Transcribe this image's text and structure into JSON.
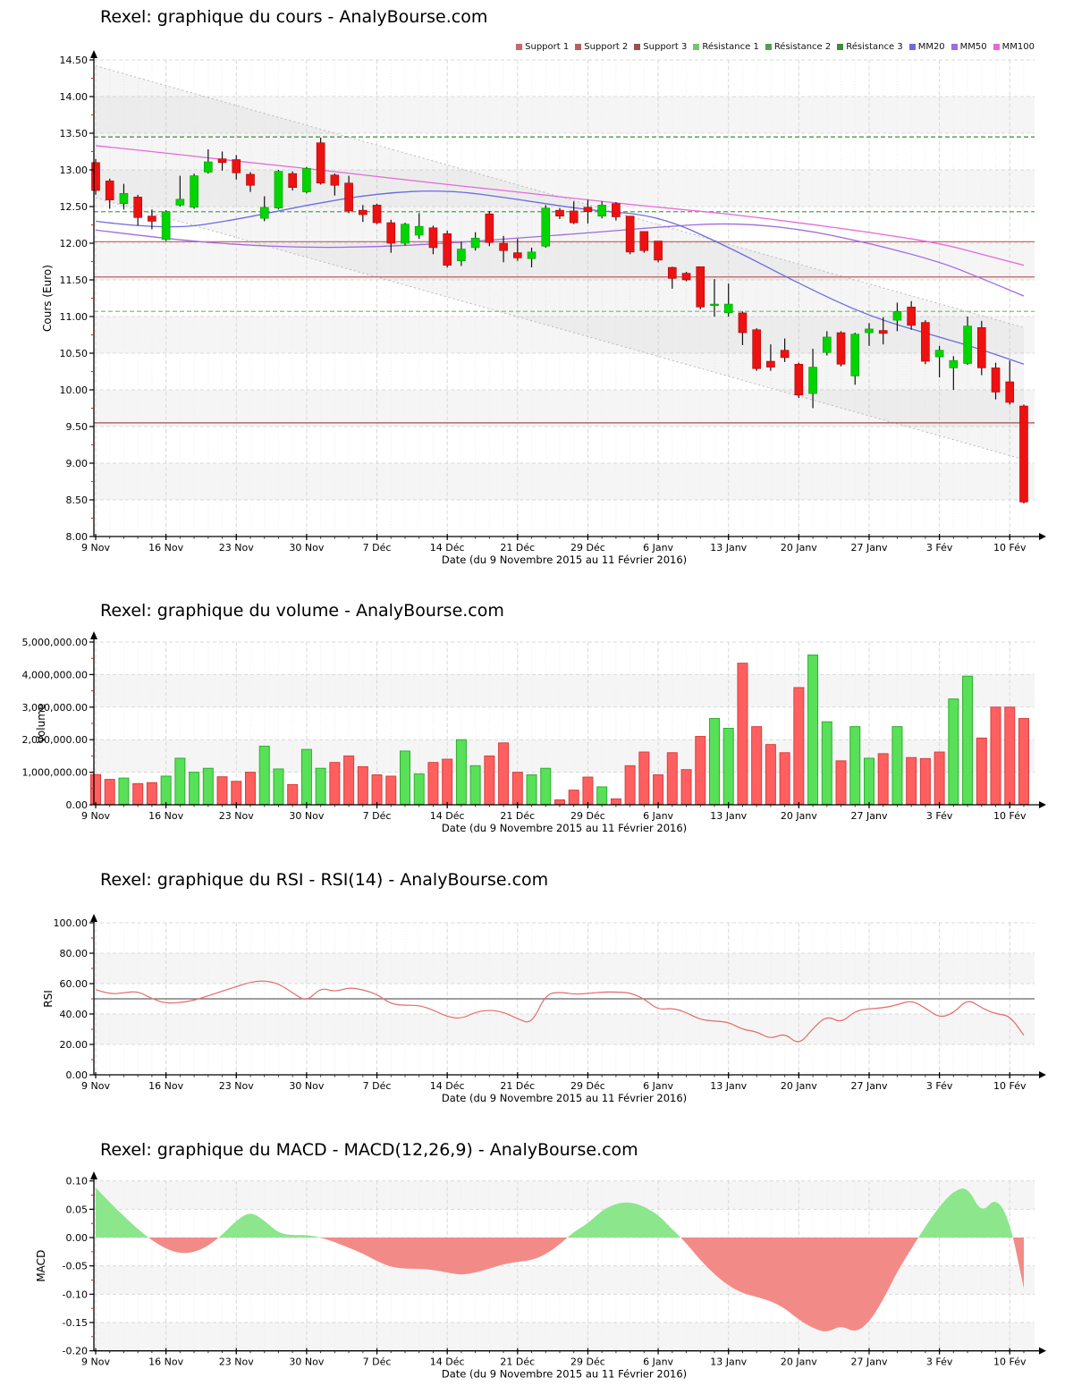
{
  "x_axis": {
    "label": "Date (du 9 Novembre 2015 au 11 Février 2016)",
    "tick_labels": [
      "9 Nov",
      "16 Nov",
      "23 Nov",
      "30 Nov",
      "7 Déc",
      "14 Déc",
      "21 Déc",
      "29 Déc",
      "6 Janv",
      "13 Janv",
      "20 Janv",
      "27 Janv",
      "3 Fév",
      "10 Fév"
    ],
    "tick_day_indices": [
      0,
      5,
      10,
      15,
      20,
      25,
      30,
      35,
      40,
      45,
      50,
      55,
      60,
      65
    ],
    "n_days": 67
  },
  "colors": {
    "candle_up": "#00d500",
    "candle_up_stroke": "#009900",
    "candle_down": "#ee1111",
    "candle_down_stroke": "#aa0000",
    "volume_up": "#58e058",
    "volume_up_stroke": "#2fae2f",
    "volume_down": "#ff5f5f",
    "volume_down_stroke": "#d84040",
    "macd_pos": "#8ce68c",
    "macd_neg": "#f28b87",
    "rsi_line": "#e46a6a",
    "rsi_mid_line": "#666666",
    "mm20": "#6b6be0",
    "mm50": "#9e6be0",
    "mm100": "#e868d8",
    "support": [
      "#c86868",
      "#b85f5f",
      "#9e4f4f"
    ],
    "resistance": [
      "#72c872",
      "#4fa44f",
      "#3d8b3d"
    ],
    "channel": "#b8b8b8",
    "grid": "#d9d9d9",
    "grid_day": "#efefef",
    "zebra": "#f5f5f5",
    "axis": "#000000",
    "minor_tick": "#dd2222"
  },
  "chart_data": [
    {
      "type": "candlestick",
      "title": "Rexel: graphique du cours - AnalyBourse.com",
      "ylabel": "Cours (Euro)",
      "xlabel": "Date (du 9 Novembre 2015 au 11 Février 2016)",
      "ylim": [
        8.0,
        14.5
      ],
      "y_tick_values": [
        14.5,
        14.0,
        13.5,
        13.0,
        12.5,
        12.0,
        11.5,
        11.0,
        10.5,
        10.0,
        9.5,
        9.0,
        8.5,
        8.0
      ],
      "y_tick_labels": [
        "14.50",
        "14.00",
        "13.50",
        "13.00",
        "12.50",
        "12.00",
        "11.50",
        "11.00",
        "10.50",
        "10.00",
        "9.50",
        "9.00",
        "8.50",
        "8.00"
      ],
      "legend": [
        {
          "label": "Support 1",
          "color": "#c86868"
        },
        {
          "label": "Support 2",
          "color": "#b85f5f"
        },
        {
          "label": "Support 3",
          "color": "#9e4f4f"
        },
        {
          "label": "Résistance 1",
          "color": "#72c872"
        },
        {
          "label": "Résistance 2",
          "color": "#4fa44f"
        },
        {
          "label": "Résistance 3",
          "color": "#3d8b3d"
        },
        {
          "label": "MM20",
          "color": "#6b6be0"
        },
        {
          "label": "MM50",
          "color": "#9e6be0"
        },
        {
          "label": "MM100",
          "color": "#e868d8"
        }
      ],
      "supports": [
        12.02,
        11.54,
        9.55
      ],
      "resistances": [
        11.07,
        12.43,
        13.45
      ],
      "regression_channel": {
        "upper_start": 14.42,
        "upper_end": 10.85,
        "lower_start": 12.62,
        "lower_end": 9.05
      },
      "mm_sample_days": [
        0,
        5,
        10,
        15,
        20,
        25,
        30,
        35,
        40,
        45,
        50,
        55,
        60,
        63,
        66
      ],
      "mm20": [
        12.3,
        12.18,
        12.32,
        12.52,
        12.68,
        12.73,
        12.6,
        12.45,
        12.38,
        11.95,
        11.45,
        11.0,
        10.72,
        10.55,
        10.35
      ],
      "mm50": [
        12.18,
        12.06,
        11.98,
        11.94,
        11.95,
        12.0,
        12.07,
        12.14,
        12.22,
        12.28,
        12.2,
        12.0,
        11.75,
        11.52,
        11.28
      ],
      "mm100": [
        13.33,
        13.23,
        13.12,
        13.02,
        12.91,
        12.8,
        12.7,
        12.59,
        12.49,
        12.4,
        12.28,
        12.15,
        12.0,
        11.85,
        11.7
      ],
      "dates": [
        "09/11",
        "10/11",
        "11/11",
        "12/11",
        "13/11",
        "16/11",
        "17/11",
        "18/11",
        "19/11",
        "20/11",
        "23/11",
        "24/11",
        "25/11",
        "26/11",
        "27/11",
        "30/11",
        "01/12",
        "02/12",
        "03/12",
        "04/12",
        "07/12",
        "08/12",
        "09/12",
        "10/12",
        "11/12",
        "14/12",
        "15/12",
        "16/12",
        "17/12",
        "18/12",
        "21/12",
        "22/12",
        "23/12",
        "24/12",
        "28/12",
        "29/12",
        "30/12",
        "31/12",
        "04/01",
        "05/01",
        "06/01",
        "07/01",
        "08/01",
        "11/01",
        "12/01",
        "13/01",
        "14/01",
        "15/01",
        "18/01",
        "19/01",
        "20/01",
        "21/01",
        "22/01",
        "25/01",
        "26/01",
        "27/01",
        "28/01",
        "29/01",
        "01/02",
        "02/02",
        "03/02",
        "04/02",
        "05/02",
        "08/02",
        "09/02",
        "10/02",
        "11/02"
      ],
      "candles_ohlc": [
        [
          13.1,
          13.15,
          12.66,
          12.72
        ],
        [
          12.85,
          12.88,
          12.47,
          12.59
        ],
        [
          12.54,
          12.81,
          12.46,
          12.68
        ],
        [
          12.63,
          12.66,
          12.24,
          12.35
        ],
        [
          12.37,
          12.46,
          12.19,
          12.3
        ],
        [
          12.05,
          12.45,
          12.03,
          12.43
        ],
        [
          12.52,
          12.92,
          12.5,
          12.6
        ],
        [
          12.49,
          12.95,
          12.47,
          12.92
        ],
        [
          12.97,
          13.28,
          12.95,
          13.11
        ],
        [
          13.15,
          13.25,
          12.99,
          13.1
        ],
        [
          13.14,
          13.2,
          12.87,
          12.96
        ],
        [
          12.94,
          12.97,
          12.7,
          12.79
        ],
        [
          12.34,
          12.64,
          12.3,
          12.49
        ],
        [
          12.48,
          13.0,
          12.46,
          12.98
        ],
        [
          12.95,
          12.98,
          12.72,
          12.76
        ],
        [
          12.7,
          13.04,
          12.68,
          13.02
        ],
        [
          13.37,
          13.44,
          12.8,
          12.82
        ],
        [
          12.93,
          12.95,
          12.65,
          12.79
        ],
        [
          12.82,
          12.92,
          12.41,
          12.44
        ],
        [
          12.45,
          12.52,
          12.29,
          12.39
        ],
        [
          12.52,
          12.54,
          12.26,
          12.28
        ],
        [
          12.28,
          12.32,
          11.87,
          12.0
        ],
        [
          12.0,
          12.28,
          11.97,
          12.26
        ],
        [
          12.11,
          12.41,
          12.06,
          12.23
        ],
        [
          12.21,
          12.24,
          11.85,
          11.94
        ],
        [
          12.13,
          12.17,
          11.67,
          11.7
        ],
        [
          11.76,
          12.02,
          11.69,
          11.92
        ],
        [
          11.94,
          12.15,
          11.9,
          12.07
        ],
        [
          12.4,
          12.44,
          11.96,
          12.01
        ],
        [
          12.0,
          12.1,
          11.74,
          11.9
        ],
        [
          11.87,
          12.06,
          11.76,
          11.8
        ],
        [
          11.79,
          11.94,
          11.67,
          11.88
        ],
        [
          11.96,
          12.52,
          11.94,
          12.48
        ],
        [
          12.45,
          12.48,
          12.33,
          12.37
        ],
        [
          12.44,
          12.57,
          12.26,
          12.28
        ],
        [
          12.49,
          12.59,
          12.27,
          12.43
        ],
        [
          12.37,
          12.57,
          12.34,
          12.52
        ],
        [
          12.54,
          12.56,
          12.31,
          12.36
        ],
        [
          12.37,
          12.37,
          11.85,
          11.88
        ],
        [
          12.16,
          12.16,
          11.87,
          11.9
        ],
        [
          12.03,
          12.03,
          11.74,
          11.77
        ],
        [
          11.67,
          11.68,
          11.38,
          11.52
        ],
        [
          11.59,
          11.61,
          11.48,
          11.5
        ],
        [
          11.68,
          11.68,
          11.1,
          11.13
        ],
        [
          11.15,
          11.51,
          11.0,
          11.17
        ],
        [
          11.05,
          11.45,
          11.0,
          11.17
        ],
        [
          11.05,
          11.07,
          10.61,
          10.78
        ],
        [
          10.82,
          10.84,
          10.26,
          10.29
        ],
        [
          10.39,
          10.62,
          10.26,
          10.31
        ],
        [
          10.54,
          10.7,
          10.38,
          10.44
        ],
        [
          10.35,
          10.37,
          9.89,
          9.93
        ],
        [
          9.95,
          10.56,
          9.75,
          10.31
        ],
        [
          10.51,
          10.8,
          10.47,
          10.72
        ],
        [
          10.78,
          10.8,
          10.32,
          10.35
        ],
        [
          10.19,
          10.78,
          10.07,
          10.76
        ],
        [
          10.78,
          10.91,
          10.6,
          10.83
        ],
        [
          10.81,
          10.99,
          10.62,
          10.77
        ],
        [
          10.95,
          11.19,
          10.8,
          11.07
        ],
        [
          11.13,
          11.21,
          10.82,
          10.88
        ],
        [
          10.92,
          10.95,
          10.35,
          10.39
        ],
        [
          10.45,
          10.6,
          10.17,
          10.54
        ],
        [
          10.3,
          10.46,
          10.0,
          10.4
        ],
        [
          10.36,
          11.0,
          10.34,
          10.87
        ],
        [
          10.85,
          10.94,
          10.2,
          10.3
        ],
        [
          10.3,
          10.37,
          9.87,
          9.97
        ],
        [
          10.11,
          10.4,
          9.8,
          9.83
        ],
        [
          9.78,
          9.8,
          8.45,
          8.47
        ]
      ]
    },
    {
      "type": "bar",
      "title": "Rexel: graphique du volume - AnalyBourse.com",
      "ylabel": "Volume",
      "xlabel": "Date (du 9 Novembre 2015 au 11 Février 2016)",
      "ylim": [
        0,
        5000000
      ],
      "y_tick_values": [
        5,
        4,
        3,
        2,
        1,
        0
      ],
      "y_tick_labels": [
        "5,000,000.00",
        "4,000,000.00",
        "3,000,000.00",
        "2,000,000.00",
        "1,000,000.00",
        "0.00"
      ],
      "values_millions": [
        0.93,
        0.78,
        0.82,
        0.65,
        0.68,
        0.88,
        1.43,
        1.0,
        1.12,
        0.86,
        0.72,
        1.0,
        1.8,
        1.1,
        0.62,
        1.7,
        1.12,
        1.3,
        1.5,
        1.17,
        0.92,
        0.88,
        1.65,
        0.95,
        1.3,
        1.4,
        2.0,
        1.2,
        1.5,
        1.9,
        1.0,
        0.92,
        1.12,
        0.15,
        0.45,
        0.85,
        0.55,
        0.18,
        1.2,
        1.62,
        0.92,
        1.6,
        1.08,
        2.1,
        2.65,
        2.35,
        4.35,
        2.4,
        1.85,
        1.6,
        3.6,
        4.6,
        2.55,
        1.35,
        2.4,
        1.43,
        1.57,
        2.4,
        1.45,
        1.42,
        1.62,
        3.25,
        3.95,
        2.05,
        3.0,
        3.0,
        2.65
      ],
      "bar_colors": [
        "r",
        "r",
        "g",
        "r",
        "r",
        "g",
        "g",
        "g",
        "g",
        "r",
        "r",
        "r",
        "g",
        "g",
        "r",
        "g",
        "g",
        "r",
        "r",
        "r",
        "r",
        "r",
        "g",
        "g",
        "r",
        "r",
        "g",
        "g",
        "r",
        "r",
        "r",
        "g",
        "g",
        "r",
        "r",
        "r",
        "g",
        "r",
        "r",
        "r",
        "r",
        "r",
        "r",
        "r",
        "g",
        "g",
        "r",
        "r",
        "r",
        "r",
        "r",
        "g",
        "g",
        "r",
        "g",
        "g",
        "r",
        "g",
        "r",
        "r",
        "r",
        "g",
        "g",
        "r",
        "r",
        "r",
        "r"
      ]
    },
    {
      "type": "line",
      "title": "Rexel: graphique du RSI - RSI(14) - AnalyBourse.com",
      "ylabel": "RSI",
      "xlabel": "Date (du 9 Novembre 2015 au 11 Février 2016)",
      "ylim": [
        0,
        100
      ],
      "mid_line": 50,
      "y_tick_values": [
        100,
        80,
        60,
        40,
        20,
        0
      ],
      "y_tick_labels": [
        "100.00",
        "80.00",
        "60.00",
        "40.00",
        "20.00",
        "0.00"
      ],
      "values": [
        56,
        53,
        54,
        55,
        50,
        47,
        47.5,
        49,
        52,
        55,
        58,
        61,
        62,
        60,
        54,
        48,
        57.5,
        54.5,
        57.5,
        56,
        53,
        46.5,
        45.7,
        45.7,
        42.7,
        38.2,
        36.9,
        41.2,
        42.7,
        41.2,
        36.9,
        33.3,
        53,
        54.5,
        53,
        53.5,
        54.5,
        54.5,
        54,
        50,
        42.7,
        44,
        41,
        36.3,
        35.3,
        34.7,
        29.8,
        28.4,
        23.5,
        27.5,
        19.5,
        30.5,
        39,
        34,
        42,
        43.5,
        44,
        46,
        49,
        44,
        37.5,
        40.5,
        50,
        44,
        40,
        39,
        26
      ]
    },
    {
      "type": "area",
      "title": "Rexel: graphique du MACD - MACD(12,26,9) - AnalyBourse.com",
      "ylabel": "MACD",
      "xlabel": "Date (du 9 Novembre 2015 au 11 Février 2016)",
      "ylim": [
        -0.2,
        0.1
      ],
      "y_tick_values": [
        0.1,
        0.05,
        0.0,
        -0.05,
        -0.1,
        -0.15,
        -0.2
      ],
      "y_tick_labels": [
        "0.10",
        "0.05",
        "0.00",
        "-0.05",
        "-0.10",
        "-0.15",
        "-0.20"
      ],
      "values": [
        0.088,
        0.062,
        0.038,
        0.015,
        -0.005,
        -0.02,
        -0.028,
        -0.026,
        -0.015,
        0.005,
        0.03,
        0.046,
        0.03,
        0.008,
        0.004,
        0.005,
        0.0,
        -0.008,
        -0.018,
        -0.028,
        -0.042,
        -0.052,
        -0.055,
        -0.055,
        -0.057,
        -0.062,
        -0.066,
        -0.062,
        -0.055,
        -0.047,
        -0.043,
        -0.04,
        -0.03,
        -0.012,
        0.01,
        0.025,
        0.048,
        0.06,
        0.063,
        0.055,
        0.04,
        0.015,
        -0.01,
        -0.04,
        -0.065,
        -0.085,
        -0.098,
        -0.105,
        -0.112,
        -0.125,
        -0.145,
        -0.16,
        -0.168,
        -0.155,
        -0.168,
        -0.15,
        -0.11,
        -0.06,
        -0.02,
        0.02,
        0.055,
        0.082,
        0.09,
        0.042,
        0.072,
        0.03,
        -0.09
      ]
    }
  ]
}
